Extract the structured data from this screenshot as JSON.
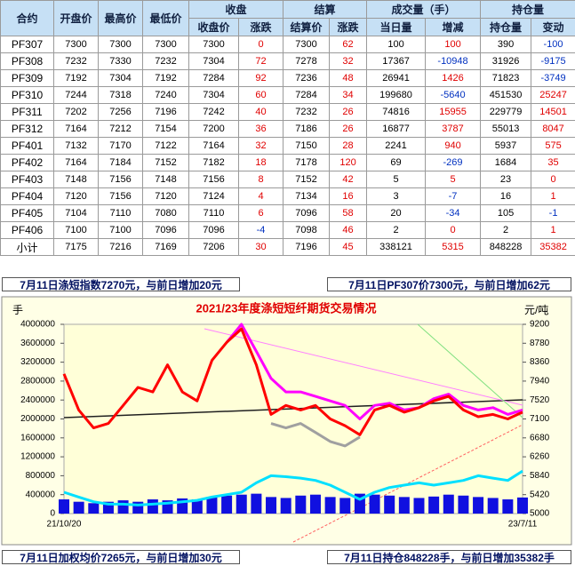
{
  "table": {
    "up_color": "#e00000",
    "down_color": "#0030c0",
    "header_top": [
      "合约",
      "开盘价",
      "最高价",
      "最低价",
      "收盘",
      "结算",
      "成交量（手）",
      "持仓量"
    ],
    "header_sub": [
      "收盘价",
      "涨跌",
      "结算价",
      "涨跌",
      "当日量",
      "增减",
      "持仓量",
      "变动"
    ],
    "rows": [
      [
        "PF307",
        7300,
        7300,
        7300,
        7300,
        0,
        7300,
        62,
        100,
        100,
        390,
        -100
      ],
      [
        "PF308",
        7232,
        7330,
        7232,
        7304,
        72,
        7278,
        32,
        17367,
        -10948,
        31926,
        -9175
      ],
      [
        "PF309",
        7192,
        7304,
        7192,
        7284,
        92,
        7236,
        48,
        26941,
        1426,
        71823,
        -3749
      ],
      [
        "PF310",
        7244,
        7318,
        7240,
        7304,
        60,
        7284,
        34,
        199680,
        -5640,
        451530,
        25247
      ],
      [
        "PF311",
        7202,
        7256,
        7196,
        7242,
        40,
        7232,
        26,
        74816,
        15955,
        229779,
        14501
      ],
      [
        "PF312",
        7164,
        7212,
        7154,
        7200,
        36,
        7186,
        26,
        16877,
        3787,
        55013,
        8047
      ],
      [
        "PF401",
        7132,
        7170,
        7122,
        7164,
        32,
        7150,
        28,
        2241,
        940,
        5937,
        575
      ],
      [
        "PF402",
        7164,
        7184,
        7152,
        7182,
        18,
        7178,
        120,
        69,
        -269,
        1684,
        35
      ],
      [
        "PF403",
        7148,
        7156,
        7148,
        7156,
        8,
        7152,
        42,
        5,
        5,
        23,
        0
      ],
      [
        "PF404",
        7120,
        7156,
        7120,
        7124,
        4,
        7134,
        16,
        3,
        -7,
        16,
        1
      ],
      [
        "PF405",
        7104,
        7110,
        7080,
        7110,
        6,
        7096,
        58,
        20,
        -34,
        105,
        -1
      ],
      [
        "PF406",
        7100,
        7100,
        7096,
        7096,
        -4,
        7098,
        46,
        2,
        0,
        2,
        1
      ],
      [
        "小计",
        7175,
        7216,
        7169,
        7206,
        30,
        7196,
        45,
        338121,
        5315,
        848228,
        35382
      ]
    ]
  },
  "notes": [
    "7月11日涤短指数7270元，与前日增加20元",
    "7月11日PF307价7300元，与前日增加62元",
    "7月11日加权均价7265元，与前日增加30元",
    "7月11日持仓848228手，与前日增加35382手"
  ],
  "chart_data": {
    "type": "line",
    "title": "2021/23年度涤短短纤期货交易情况",
    "y_label": "手",
    "y2_label": "元/吨",
    "categories": [
      "21/10/20",
      null,
      null,
      null,
      null,
      null,
      null,
      null,
      null,
      null,
      null,
      null,
      null,
      null,
      null,
      null,
      null,
      null,
      null,
      null,
      null,
      null,
      null,
      null,
      null,
      null,
      null,
      null,
      null,
      null,
      null,
      "23/7/11"
    ],
    "ylim": [
      0,
      4000000
    ],
    "yticks": [
      0,
      400000,
      800000,
      1200000,
      1600000,
      2000000,
      2400000,
      2800000,
      3200000,
      3600000,
      4000000
    ],
    "y2lim": [
      5000,
      9200
    ],
    "y2ticks": [
      5000,
      5420,
      5840,
      6260,
      6680,
      7100,
      7520,
      7940,
      8360,
      8780,
      9200
    ],
    "series": [
      {
        "type": "bar",
        "color": "#1010e0",
        "axis": "y",
        "values": [
          300000,
          250000,
          220000,
          250000,
          280000,
          250000,
          300000,
          280000,
          320000,
          300000,
          350000,
          380000,
          400000,
          420000,
          350000,
          330000,
          380000,
          400000,
          350000,
          330000,
          420000,
          400000,
          380000,
          350000,
          330000,
          360000,
          400000,
          380000,
          350000,
          330000,
          300000,
          340000
        ]
      },
      {
        "type": "line",
        "color": "#00e0ff",
        "axis": "y",
        "values": [
          450000,
          350000,
          250000,
          200000,
          200000,
          180000,
          200000,
          220000,
          250000,
          280000,
          350000,
          400000,
          450000,
          650000,
          800000,
          780000,
          750000,
          700000,
          600000,
          450000,
          300000,
          450000,
          550000,
          600000,
          650000,
          600000,
          650000,
          700000,
          800000,
          750000,
          700000,
          900000
        ]
      },
      {
        "type": "line",
        "color": "#a0a0a0",
        "axis": "y2",
        "values": [
          null,
          null,
          null,
          null,
          null,
          null,
          null,
          null,
          null,
          null,
          null,
          null,
          null,
          null,
          7000,
          6900,
          7000,
          6800,
          6600,
          6500,
          6700,
          null,
          null,
          null,
          null,
          null,
          null,
          null,
          null,
          null,
          null,
          null
        ]
      },
      {
        "type": "line",
        "color": "#ff00ff",
        "axis": "y2",
        "values": [
          null,
          null,
          null,
          null,
          null,
          null,
          null,
          null,
          null,
          null,
          null,
          8800,
          9200,
          8600,
          8000,
          7700,
          7700,
          7600,
          7500,
          7400,
          7100,
          7400,
          7450,
          7300,
          7350,
          7550,
          7650,
          7400,
          7300,
          7350,
          7200,
          7300
        ]
      },
      {
        "type": "line",
        "color": "#ff0000",
        "axis": "y2",
        "values": [
          8100,
          7300,
          6900,
          7000,
          7400,
          7800,
          7700,
          8300,
          7700,
          7500,
          8400,
          8800,
          9100,
          8300,
          7200,
          7400,
          7300,
          7400,
          7100,
          6950,
          6750,
          7300,
          7400,
          7250,
          7350,
          7500,
          7600,
          7300,
          7150,
          7200,
          7100,
          7250
        ]
      }
    ]
  }
}
